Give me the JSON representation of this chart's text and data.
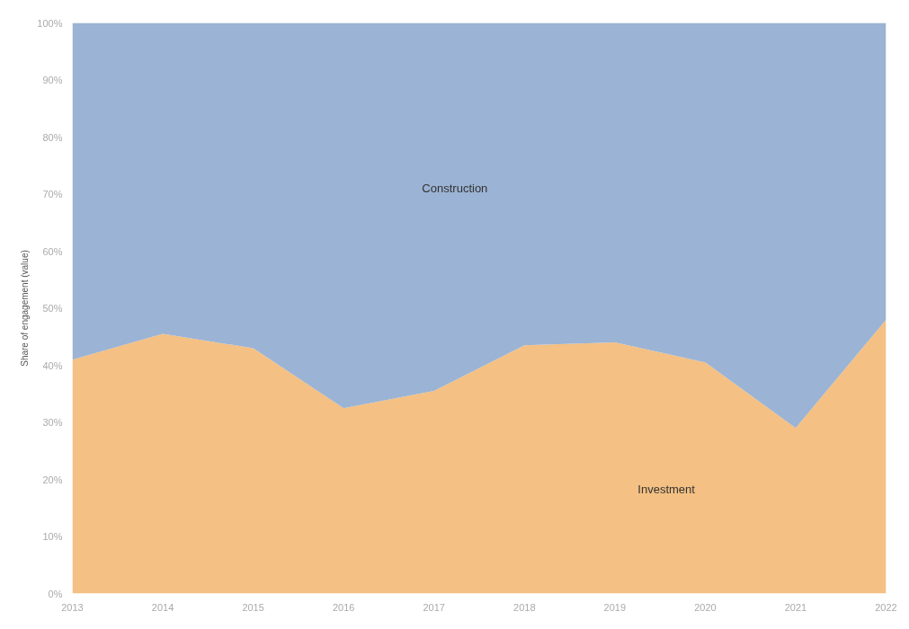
{
  "chart_data": {
    "type": "area",
    "stacked": true,
    "ylabel": "Share of engagement (value)",
    "x": [
      2013,
      2014,
      2015,
      2016,
      2017,
      2018,
      2019,
      2020,
      2021,
      2022
    ],
    "xlim": [
      2013,
      2022
    ],
    "xticks": [
      2013,
      2014,
      2015,
      2016,
      2017,
      2018,
      2019,
      2020,
      2021,
      2022
    ],
    "ylim": [
      0,
      100
    ],
    "yticks": [
      {
        "value": 0,
        "label": "0%"
      },
      {
        "value": 10,
        "label": "10%"
      },
      {
        "value": 20,
        "label": "20%"
      },
      {
        "value": 30,
        "label": "30%"
      },
      {
        "value": 40,
        "label": "40%"
      },
      {
        "value": 50,
        "label": "50%"
      },
      {
        "value": 60,
        "label": "60%"
      },
      {
        "value": 70,
        "label": "70%"
      },
      {
        "value": 80,
        "label": "80%"
      },
      {
        "value": 90,
        "label": "90%"
      },
      {
        "value": 100,
        "label": "100%"
      }
    ],
    "grid": false,
    "series": [
      {
        "name": "Investment",
        "color": "#f4c083",
        "values": [
          41,
          45.5,
          43,
          32.5,
          35.5,
          43.5,
          44,
          40.5,
          29,
          48
        ]
      },
      {
        "name": "Construction",
        "color": "#9bb3d4",
        "values": [
          59,
          54.5,
          57,
          67.5,
          64.5,
          56.5,
          56,
          59.5,
          71,
          52
        ]
      }
    ]
  }
}
